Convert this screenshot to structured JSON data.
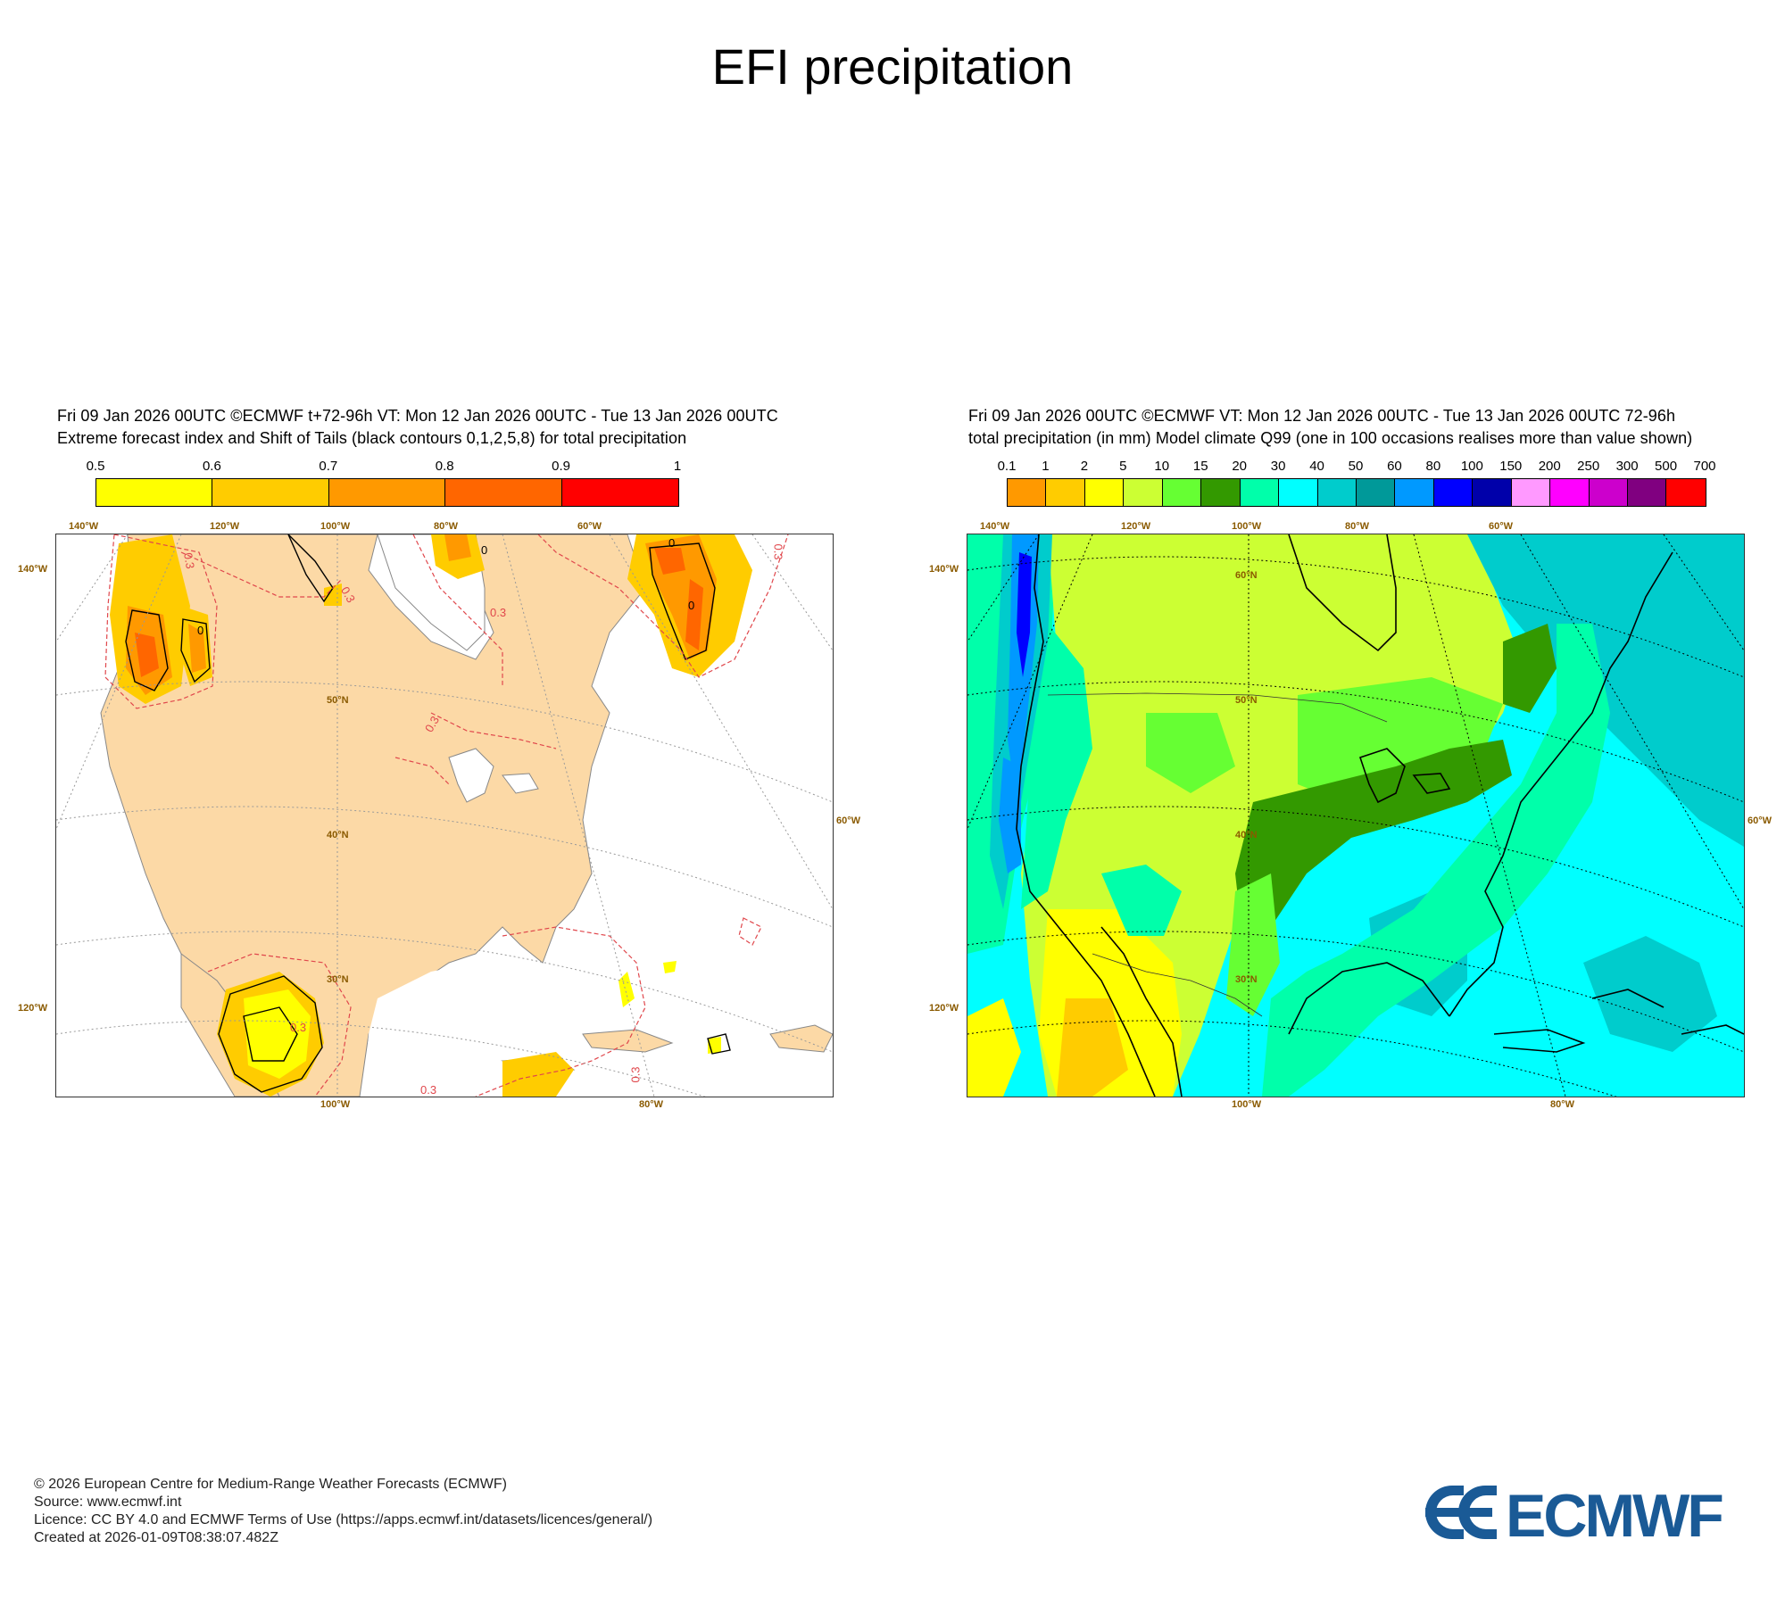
{
  "title": "EFI precipitation",
  "left_panel": {
    "header_line1": "Fri 09 Jan 2026 00UTC ©ECMWF t+72-96h  VT: Mon 12 Jan 2026 00UTC - Tue 13 Jan 2026 00UTC",
    "header_line2": "Extreme forecast index and Shift of Tails (black contours 0,1,2,5,8) for total precipitation",
    "colorbar": {
      "labels": [
        "0.5",
        "0.6",
        "0.7",
        "0.8",
        "0.9",
        "1"
      ],
      "colors": [
        "#ffff00",
        "#ffcc00",
        "#ff9900",
        "#ff6600",
        "#ff0000"
      ]
    },
    "contour_labels": [
      "0",
      "0",
      "0",
      "0",
      "0.3",
      "0.3",
      "0.3",
      "0.3",
      "0.3",
      "0.3",
      "0.3",
      "0.3"
    ],
    "top_lon_labels": [
      "140°W",
      "120°W",
      "100°W",
      "80°W",
      "60°W"
    ],
    "bottom_lon_labels": [
      "100°W",
      "80°W"
    ],
    "side_labels_left": [
      "140°W",
      "120°W"
    ],
    "side_labels_right": [
      "60°W"
    ],
    "lat_labels": [
      "50°N",
      "40°N",
      "30°N"
    ],
    "land_color": "#fcd9a6"
  },
  "right_panel": {
    "header_line1": "Fri 09 Jan 2026 00UTC ©ECMWF VT: Mon 12 Jan 2026 00UTC - Tue 13 Jan 2026 00UTC   72-96h",
    "header_line2": "total precipitation (in mm)  Model climate Q99 (one in 100 occasions realises more than value shown)",
    "colorbar": {
      "labels": [
        "0.1",
        "1",
        "2",
        "5",
        "10",
        "15",
        "20",
        "30",
        "40",
        "50",
        "60",
        "80",
        "100",
        "150",
        "200",
        "250",
        "300",
        "500",
        "700"
      ],
      "colors": [
        "#ff9900",
        "#ffcc00",
        "#ffff00",
        "#ccff33",
        "#66ff33",
        "#339900",
        "#00ffaa",
        "#00ffff",
        "#00cccc",
        "#009999",
        "#0099ff",
        "#0000ff",
        "#0000aa",
        "#ff99ff",
        "#ff00ff",
        "#cc00cc",
        "#800080",
        "#ff0000"
      ]
    },
    "top_lon_labels": [
      "140°W",
      "120°W",
      "100°W",
      "80°W",
      "60°W"
    ],
    "bottom_lon_labels": [
      "100°W",
      "80°W"
    ],
    "side_labels_left": [
      "140°W",
      "120°W"
    ],
    "side_labels_right": [
      "60°W"
    ],
    "lat_labels": [
      "60°N",
      "50°N",
      "40°N",
      "30°N"
    ]
  },
  "footer": {
    "line1": "© 2026 European Centre for Medium-Range Weather Forecasts (ECMWF)",
    "line2": "Source: www.ecmwf.int",
    "line3": "Licence: CC BY 4.0 and ECMWF Terms of Use (https://apps.ecmwf.int/datasets/licences/general/)",
    "line4": "Created at 2026-01-09T08:38:07.482Z"
  },
  "logo": {
    "text": "ECMWF",
    "color": "#1a5a96"
  }
}
